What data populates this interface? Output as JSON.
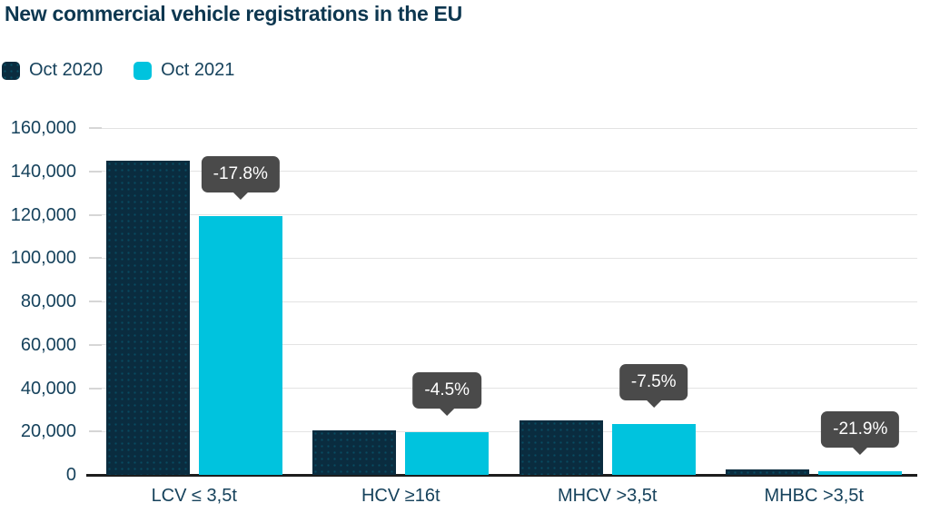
{
  "title": "New commercial vehicle registrations in the EU",
  "colors": {
    "series_oct_2020": "#0a2c3f",
    "series_oct_2021": "#00c3de",
    "text": "#16425c",
    "title_text": "#0d3750",
    "gridline": "#e3e3e3",
    "baseline": "#1d1d1d",
    "tooltip_bg": "#4a4a4a",
    "tooltip_text": "#ffffff"
  },
  "chart_data": {
    "type": "bar",
    "title": "New commercial vehicle registrations in the EU",
    "categories": [
      "LCV ≤ 3,5t",
      "HCV ≥16t",
      "MHCV >3,5t",
      "MHBC >3,5t"
    ],
    "series": [
      {
        "name": "Oct 2020",
        "color": "#0a2c3f",
        "values": [
          145000,
          20700,
          25300,
          2400
        ]
      },
      {
        "name": "Oct 2021",
        "color": "#00c3de",
        "values": [
          119200,
          19770,
          23400,
          1870
        ]
      }
    ],
    "change_labels": [
      "-17.8%",
      "-4.5%",
      "-7.5%",
      "-21.9%"
    ],
    "ylim": [
      0,
      160000
    ],
    "ytick_step": 20000,
    "ytick_labels": [
      "0",
      "20,000",
      "40,000",
      "60,000",
      "80,000",
      "100,000",
      "120,000",
      "140,000",
      "160,000"
    ],
    "xlabel": "",
    "ylabel": "",
    "grid": true,
    "legend_position": "top-left"
  }
}
